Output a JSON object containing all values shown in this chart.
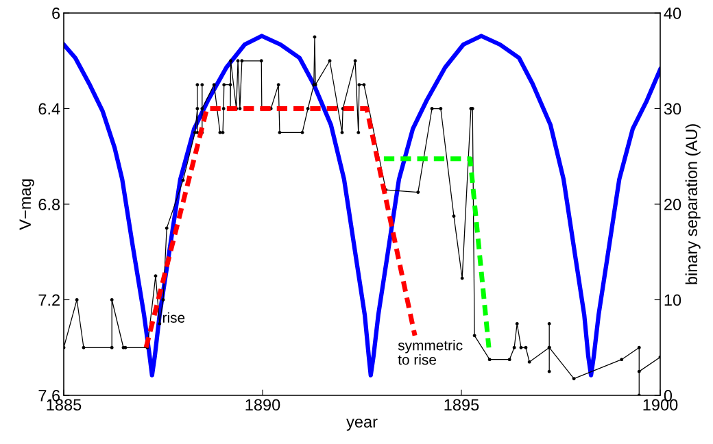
{
  "chart_data": {
    "type": "line",
    "xlabel": "year",
    "ylabel": "V−mag",
    "y2label": "binary separation (AU)",
    "xlim": [
      1885,
      1900
    ],
    "xticks": [
      1885,
      1890,
      1895,
      1900
    ],
    "ylim": [
      7.6,
      6
    ],
    "yticks": [
      6,
      6.4,
      6.8,
      7.2,
      7.6
    ],
    "y2lim": [
      0,
      40
    ],
    "y2ticks": [
      0,
      10,
      20,
      30,
      40
    ],
    "grid": false,
    "legend": false,
    "series": [
      {
        "color": "#0000ff",
        "axis": "y2",
        "line_style": "solid",
        "marker": "none",
        "x": [
          1885.0,
          1885.29,
          1885.64,
          1885.98,
          1886.28,
          1886.47,
          1886.72,
          1887.02,
          1887.16,
          1887.22,
          1887.29,
          1887.41,
          1887.62,
          1887.93,
          1888.28,
          1888.62,
          1889.09,
          1889.55,
          1889.98,
          1890.45,
          1890.93,
          1891.28,
          1891.72,
          1892.05,
          1892.36,
          1892.57,
          1892.67,
          1892.72,
          1892.79,
          1892.91,
          1893.12,
          1893.43,
          1893.78,
          1894.12,
          1894.59,
          1895.05,
          1895.5,
          1895.97,
          1896.45,
          1896.79,
          1897.24,
          1897.57,
          1897.88,
          1898.09,
          1898.19,
          1898.26,
          1898.33,
          1898.45,
          1898.66,
          1898.97,
          1899.31,
          1899.66,
          1900.0
        ],
        "values": [
          36.7,
          35.3,
          32.6,
          29.7,
          25.9,
          22.6,
          16.0,
          8.4,
          4.1,
          2.1,
          4.1,
          8.4,
          14.1,
          22.6,
          27.9,
          30.8,
          34.3,
          36.7,
          37.6,
          36.7,
          35.3,
          32.6,
          28.3,
          22.6,
          14.1,
          8.4,
          4.1,
          2.1,
          4.1,
          8.4,
          14.1,
          22.6,
          27.9,
          30.8,
          34.3,
          36.7,
          37.6,
          36.7,
          35.3,
          32.6,
          28.3,
          22.6,
          14.1,
          8.4,
          4.1,
          2.1,
          4.1,
          8.4,
          14.1,
          22.6,
          27.9,
          30.8,
          34.1
        ]
      },
      {
        "color": "#000000",
        "axis": "y",
        "line_style": "solid",
        "marker": "circle",
        "x": [
          1885.0,
          1885.33,
          1885.5,
          1886.21,
          1886.21,
          1886.5,
          1886.55,
          1887.1,
          1887.31,
          1887.41,
          1887.5,
          1887.59,
          1888.0,
          1888.3,
          1888.36,
          1888.36,
          1888.36,
          1888.48,
          1888.48,
          1888.48,
          1888.78,
          1888.93,
          1889.0,
          1889.02,
          1889.03,
          1889.19,
          1889.19,
          1889.2,
          1889.34,
          1889.38,
          1889.43,
          1889.48,
          1889.97,
          1889.98,
          1890.21,
          1890.4,
          1890.43,
          1891.0,
          1891.14,
          1891.29,
          1891.31,
          1891.33,
          1891.69,
          1892.0,
          1892.02,
          1892.33,
          1892.41,
          1892.43,
          1892.55,
          1893.1,
          1893.91,
          1894.26,
          1894.48,
          1894.81,
          1895.02,
          1895.24,
          1895.28,
          1895.33,
          1895.71,
          1896.21,
          1896.33,
          1896.4,
          1896.5,
          1896.62,
          1896.71,
          1897.21,
          1897.21,
          1897.21,
          1897.21,
          1897.83,
          1899.03,
          1899.47,
          1899.47,
          1899.47,
          1900.0
        ],
        "values": [
          7.4,
          7.2,
          7.4,
          7.4,
          7.2,
          7.4,
          7.4,
          7.4,
          7.1,
          7.3,
          7.2,
          6.9,
          6.7,
          6.5,
          6.4,
          6.3,
          6.5,
          6.5,
          6.3,
          6.4,
          6.3,
          6.5,
          6.5,
          6.4,
          6.3,
          6.3,
          6.4,
          6.2,
          6.4,
          6.2,
          6.4,
          6.2,
          6.2,
          6.4,
          6.4,
          6.3,
          6.5,
          6.5,
          6.4,
          6.3,
          6.1,
          6.3,
          6.2,
          6.5,
          6.4,
          6.2,
          6.5,
          6.3,
          6.3,
          6.74,
          6.75,
          6.4,
          6.4,
          6.85,
          7.11,
          6.4,
          6.4,
          7.35,
          7.45,
          7.45,
          7.4,
          7.3,
          7.4,
          7.4,
          7.46,
          7.4,
          7.3,
          7.5,
          7.4,
          7.53,
          7.45,
          7.4,
          7.6,
          7.5,
          7.44
        ]
      },
      {
        "color": "#ff0000",
        "axis": "y",
        "line_style": "dashed",
        "marker": "none",
        "x": [
          1887.07,
          1888.6,
          1892.62,
          1893.83
        ],
        "values": [
          7.4,
          6.4,
          6.4,
          7.35
        ]
      },
      {
        "color": "#00ff00",
        "axis": "y",
        "line_style": "dashed",
        "marker": "none",
        "x": [
          1893.05,
          1895.22,
          1895.69
        ],
        "values": [
          6.61,
          6.61,
          7.4
        ]
      }
    ],
    "annotations": [
      "rise",
      "symmetric\nto rise"
    ]
  }
}
